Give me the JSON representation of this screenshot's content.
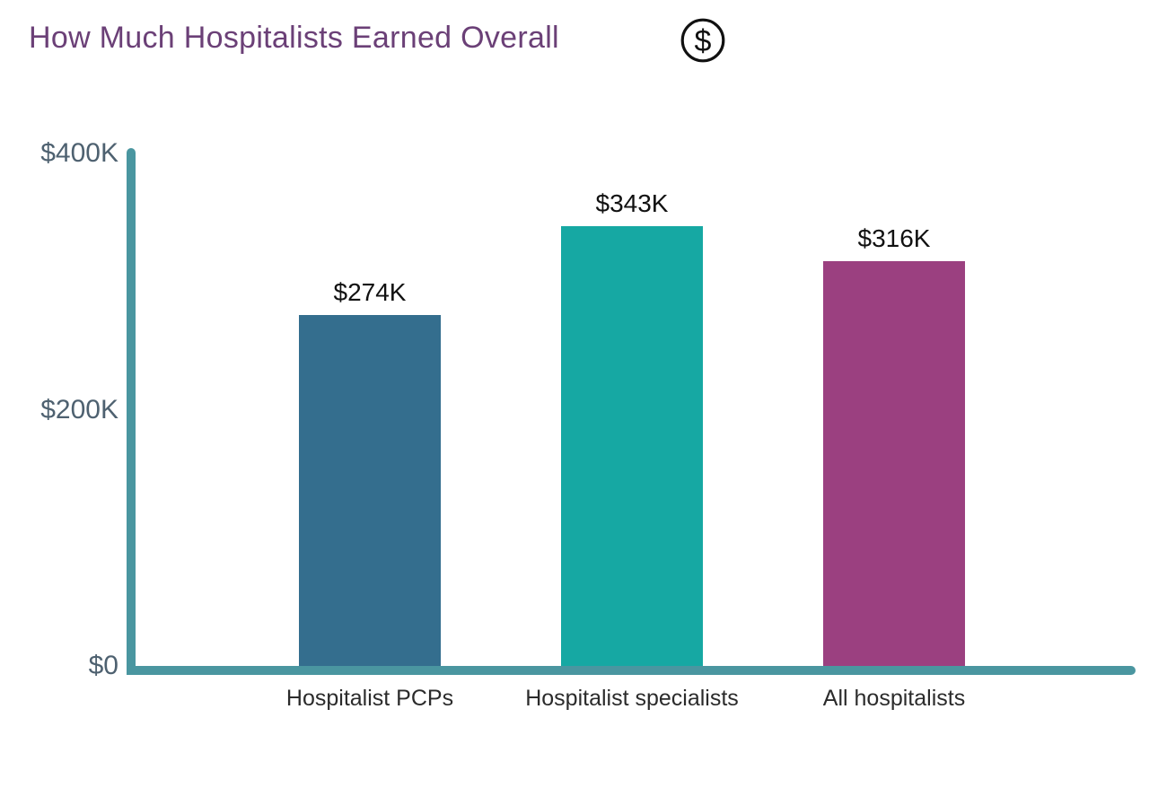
{
  "header": {
    "title": "How Much Hospitalists Earned Overall",
    "icon": "dollar-circle-icon",
    "icon_glyph": "$"
  },
  "chart_data": {
    "type": "bar",
    "title": "How Much Hospitalists Earned Overall",
    "categories": [
      "Hospitalist PCPs",
      "Hospitalist specialists",
      "All hospitalists"
    ],
    "values": [
      274,
      343,
      316
    ],
    "value_labels": [
      "$274K",
      "$343K",
      "$316K"
    ],
    "ylim": [
      0,
      400
    ],
    "yticks": [
      {
        "value": 0,
        "label": "$0"
      },
      {
        "value": 200,
        "label": "$200K"
      },
      {
        "value": 400,
        "label": "$400K"
      }
    ],
    "bar_colors": [
      "#346e8e",
      "#16a8a3",
      "#9b4080"
    ],
    "xlabel": "",
    "ylabel": "",
    "grid": false,
    "legend": false
  },
  "colors": {
    "title": "#6b4077",
    "axis": "#4a96a0",
    "tick_label": "#4e6170",
    "category_label": "#2b2b2b",
    "data_label": "#111111",
    "icon": "#111111",
    "background": "#ffffff"
  }
}
